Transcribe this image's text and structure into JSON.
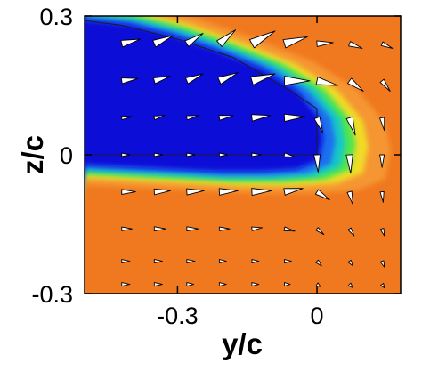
{
  "chart_data": {
    "type": "heatmap",
    "title": "",
    "xlabel": "y/c",
    "ylabel": "z/c",
    "xlim": [
      -0.5,
      0.18
    ],
    "ylim": [
      -0.3,
      0.3
    ],
    "x_ticks": [
      -0.3,
      0
    ],
    "x_tick_labels": [
      "-0.3",
      "0"
    ],
    "y_ticks": [
      -0.3,
      0,
      0.3
    ],
    "y_tick_labels": [
      "-0.3",
      "0",
      "0.3"
    ],
    "grid": false,
    "legend": "none",
    "colormap": [
      "#0a0ad8",
      "#1e6ef0",
      "#19c8c8",
      "#50e650",
      "#f0dc28",
      "#f59632",
      "#f0781e"
    ],
    "background_color": "#f0781e",
    "wing_outline": {
      "x": [
        -0.5,
        -0.42,
        -0.3,
        -0.18,
        -0.06,
        0.0,
        0.0,
        -0.5
      ],
      "y": [
        0.29,
        0.28,
        0.25,
        0.21,
        0.14,
        0.1,
        0.0,
        0.0
      ]
    },
    "vortex_region": {
      "core_edge_x": [
        -0.5,
        -0.4,
        -0.3,
        -0.2,
        -0.1,
        -0.02,
        0.03,
        0.04,
        0.03,
        -0.02,
        -0.1,
        -0.2,
        -0.3,
        -0.4,
        -0.5
      ],
      "core_edge_y": [
        0.3,
        0.29,
        0.265,
        0.23,
        0.19,
        0.14,
        0.08,
        0.03,
        -0.02,
        -0.04,
        -0.045,
        -0.045,
        -0.04,
        -0.035,
        -0.03
      ]
    },
    "vectors": [
      {
        "x": -0.42,
        "y": 0.24,
        "u": 0.8,
        "v": 0.2
      },
      {
        "x": -0.35,
        "y": 0.24,
        "u": 0.8,
        "v": 0.35
      },
      {
        "x": -0.28,
        "y": 0.24,
        "u": 0.7,
        "v": 0.45
      },
      {
        "x": -0.21,
        "y": 0.24,
        "u": 0.7,
        "v": 0.6
      },
      {
        "x": -0.14,
        "y": 0.24,
        "u": 1.0,
        "v": 0.55
      },
      {
        "x": -0.07,
        "y": 0.24,
        "u": 1.0,
        "v": 0.3
      },
      {
        "x": 0.0,
        "y": 0.24,
        "u": 0.7,
        "v": 0.05
      },
      {
        "x": 0.07,
        "y": 0.24,
        "u": 0.55,
        "v": -0.2
      },
      {
        "x": 0.14,
        "y": 0.24,
        "u": 0.45,
        "v": -0.2
      },
      {
        "x": -0.42,
        "y": 0.16,
        "u": 0.7,
        "v": 0.1
      },
      {
        "x": -0.35,
        "y": 0.16,
        "u": 0.7,
        "v": 0.2
      },
      {
        "x": -0.28,
        "y": 0.16,
        "u": 0.7,
        "v": 0.3
      },
      {
        "x": -0.21,
        "y": 0.16,
        "u": 0.8,
        "v": 0.35
      },
      {
        "x": -0.14,
        "y": 0.16,
        "u": 1.0,
        "v": 0.3
      },
      {
        "x": -0.07,
        "y": 0.16,
        "u": 1.1,
        "v": 0.0
      },
      {
        "x": 0.0,
        "y": 0.16,
        "u": 0.9,
        "v": -0.2
      },
      {
        "x": 0.07,
        "y": 0.16,
        "u": 0.6,
        "v": -0.45
      },
      {
        "x": 0.14,
        "y": 0.16,
        "u": 0.35,
        "v": -0.45
      },
      {
        "x": -0.42,
        "y": 0.08,
        "u": 0.45,
        "v": 0.05
      },
      {
        "x": -0.35,
        "y": 0.08,
        "u": 0.45,
        "v": 0.1
      },
      {
        "x": -0.28,
        "y": 0.08,
        "u": 0.5,
        "v": 0.1
      },
      {
        "x": -0.21,
        "y": 0.08,
        "u": 0.6,
        "v": 0.1
      },
      {
        "x": -0.14,
        "y": 0.08,
        "u": 0.8,
        "v": 0.1
      },
      {
        "x": -0.07,
        "y": 0.08,
        "u": 0.9,
        "v": 0.05
      },
      {
        "x": 0.0,
        "y": 0.08,
        "u": 0.25,
        "v": -0.65
      },
      {
        "x": 0.07,
        "y": 0.08,
        "u": 0.25,
        "v": -0.75
      },
      {
        "x": 0.14,
        "y": 0.08,
        "u": 0.1,
        "v": -0.55
      },
      {
        "x": -0.42,
        "y": 0.0,
        "u": 0.35,
        "v": 0.0
      },
      {
        "x": -0.35,
        "y": 0.0,
        "u": 0.35,
        "v": 0.0
      },
      {
        "x": -0.28,
        "y": 0.0,
        "u": 0.35,
        "v": 0.0
      },
      {
        "x": -0.21,
        "y": 0.0,
        "u": 0.35,
        "v": 0.0
      },
      {
        "x": -0.14,
        "y": 0.0,
        "u": 0.4,
        "v": 0.0
      },
      {
        "x": -0.07,
        "y": 0.0,
        "u": 0.45,
        "v": -0.1
      },
      {
        "x": 0.0,
        "y": 0.0,
        "u": 0.05,
        "v": -0.75
      },
      {
        "x": 0.07,
        "y": 0.0,
        "u": 0.05,
        "v": -0.8
      },
      {
        "x": 0.14,
        "y": 0.0,
        "u": 0.0,
        "v": -0.55
      },
      {
        "x": -0.42,
        "y": -0.08,
        "u": 0.6,
        "v": 0.0
      },
      {
        "x": -0.35,
        "y": -0.08,
        "u": 0.7,
        "v": 0.05
      },
      {
        "x": -0.28,
        "y": -0.08,
        "u": 0.75,
        "v": 0.05
      },
      {
        "x": -0.21,
        "y": -0.08,
        "u": 0.8,
        "v": 0.05
      },
      {
        "x": -0.14,
        "y": -0.08,
        "u": 0.85,
        "v": 0.05
      },
      {
        "x": -0.07,
        "y": -0.08,
        "u": 0.8,
        "v": 0.15
      },
      {
        "x": 0.0,
        "y": -0.08,
        "u": 0.55,
        "v": -0.35
      },
      {
        "x": 0.07,
        "y": -0.08,
        "u": 0.15,
        "v": -0.55
      },
      {
        "x": 0.14,
        "y": -0.08,
        "u": 0.05,
        "v": -0.45
      },
      {
        "x": -0.42,
        "y": -0.16,
        "u": 0.45,
        "v": 0.0
      },
      {
        "x": -0.35,
        "y": -0.16,
        "u": 0.5,
        "v": 0.0
      },
      {
        "x": -0.28,
        "y": -0.16,
        "u": 0.5,
        "v": 0.0
      },
      {
        "x": -0.21,
        "y": -0.16,
        "u": 0.45,
        "v": 0.0
      },
      {
        "x": -0.14,
        "y": -0.16,
        "u": 0.45,
        "v": 0.05
      },
      {
        "x": -0.07,
        "y": -0.16,
        "u": 0.45,
        "v": -0.1
      },
      {
        "x": 0.0,
        "y": -0.16,
        "u": 0.3,
        "v": -0.25
      },
      {
        "x": 0.07,
        "y": -0.16,
        "u": 0.2,
        "v": -0.3
      },
      {
        "x": 0.14,
        "y": -0.16,
        "u": 0.1,
        "v": -0.3
      },
      {
        "x": -0.42,
        "y": -0.23,
        "u": 0.35,
        "v": 0.0
      },
      {
        "x": -0.35,
        "y": -0.23,
        "u": 0.35,
        "v": 0.0
      },
      {
        "x": -0.28,
        "y": -0.23,
        "u": 0.35,
        "v": 0.0
      },
      {
        "x": -0.21,
        "y": -0.23,
        "u": 0.3,
        "v": 0.0
      },
      {
        "x": -0.14,
        "y": -0.23,
        "u": 0.3,
        "v": 0.0
      },
      {
        "x": -0.07,
        "y": -0.23,
        "u": 0.3,
        "v": 0.0
      },
      {
        "x": 0.0,
        "y": -0.23,
        "u": 0.2,
        "v": -0.2
      },
      {
        "x": 0.07,
        "y": -0.23,
        "u": 0.15,
        "v": -0.2
      },
      {
        "x": 0.14,
        "y": -0.23,
        "u": 0.1,
        "v": -0.25
      },
      {
        "x": -0.42,
        "y": -0.28,
        "u": 0.35,
        "v": 0.0
      },
      {
        "x": -0.35,
        "y": -0.28,
        "u": 0.35,
        "v": 0.0
      },
      {
        "x": -0.28,
        "y": -0.28,
        "u": 0.3,
        "v": 0.0
      },
      {
        "x": -0.21,
        "y": -0.28,
        "u": 0.3,
        "v": 0.0
      },
      {
        "x": -0.14,
        "y": -0.28,
        "u": 0.3,
        "v": 0.0
      },
      {
        "x": -0.07,
        "y": -0.28,
        "u": 0.25,
        "v": 0.0
      },
      {
        "x": 0.0,
        "y": -0.28,
        "u": 0.15,
        "v": -0.1
      },
      {
        "x": 0.07,
        "y": -0.28,
        "u": 0.15,
        "v": -0.15
      },
      {
        "x": 0.14,
        "y": -0.28,
        "u": 0.1,
        "v": -0.15
      }
    ]
  }
}
